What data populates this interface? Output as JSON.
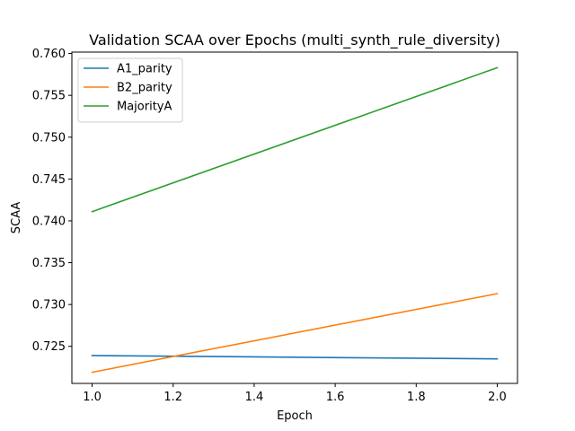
{
  "chart_data": {
    "type": "line",
    "title": "Validation SCAA over Epochs (multi_synth_rule_diversity)",
    "xlabel": "Epoch",
    "ylabel": "SCAA",
    "x": [
      1.0,
      2.0
    ],
    "xlim": [
      0.95,
      2.05
    ],
    "ylim": [
      0.72057,
      0.76017
    ],
    "xticks": [
      1.0,
      1.2,
      1.4,
      1.6,
      1.8,
      2.0
    ],
    "xtick_labels": [
      "1.0",
      "1.2",
      "1.4",
      "1.6",
      "1.8",
      "2.0"
    ],
    "yticks": [
      0.725,
      0.73,
      0.735,
      0.74,
      0.745,
      0.75,
      0.755,
      0.76
    ],
    "ytick_labels": [
      "0.725",
      "0.730",
      "0.735",
      "0.740",
      "0.745",
      "0.750",
      "0.755",
      "0.760"
    ],
    "grid": false,
    "legend_position": "top-left",
    "series": [
      {
        "name": "A1_parity",
        "color": "#1f77b4",
        "values": [
          0.7239,
          0.7235
        ]
      },
      {
        "name": "B2_parity",
        "color": "#ff7f0e",
        "values": [
          0.7219,
          0.7313
        ]
      },
      {
        "name": "MajorityA",
        "color": "#2ca02c",
        "values": [
          0.7411,
          0.7583
        ]
      }
    ]
  }
}
